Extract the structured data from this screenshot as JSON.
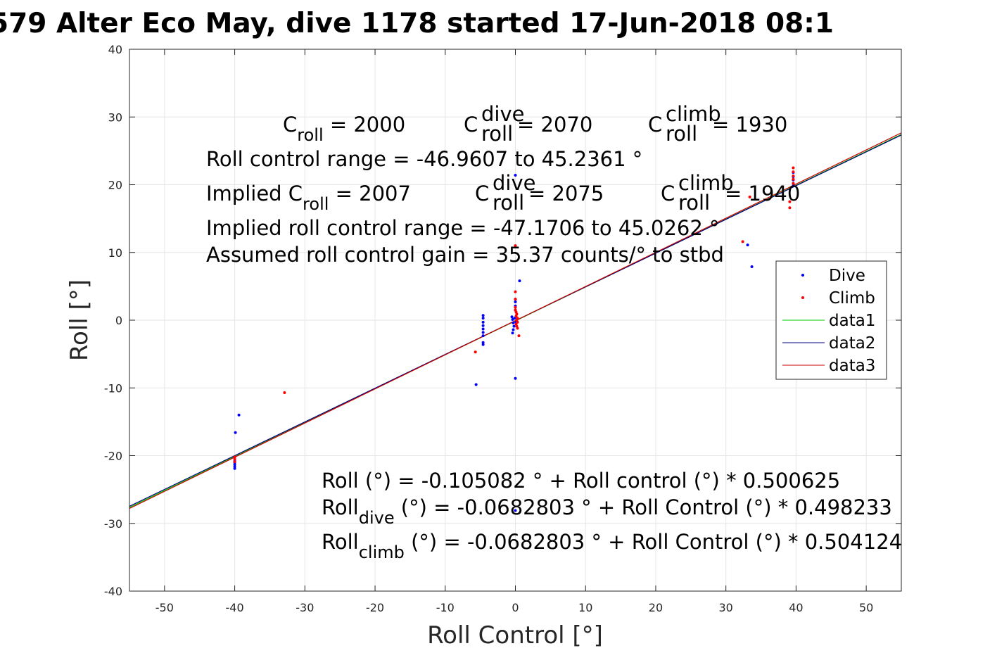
{
  "chart_data": {
    "type": "scatter",
    "title": "579 Alter Eco May, dive 1178 started 17-Jun-2018 08:1",
    "xlabel": "Roll Control [°]",
    "ylabel": "Roll [°]",
    "xlim": [
      -55,
      55
    ],
    "ylim": [
      -40,
      40
    ],
    "xticks": [
      -50,
      -40,
      -30,
      -20,
      -10,
      0,
      10,
      20,
      30,
      40,
      50
    ],
    "yticks": [
      -40,
      -30,
      -20,
      -10,
      0,
      10,
      20,
      30,
      40
    ],
    "grid": true,
    "legend_position": "right",
    "series": [
      {
        "name": "Dive",
        "kind": "points",
        "color": "#0000ff",
        "points": [
          [
            -40,
            -21.9
          ],
          [
            -40,
            -21.6
          ],
          [
            -40,
            -21.3
          ],
          [
            -40,
            -21.0
          ],
          [
            -40,
            -20.8
          ],
          [
            -39.9,
            -16.6
          ],
          [
            -39.4,
            -14.0
          ],
          [
            -4.6,
            0.7
          ],
          [
            -4.6,
            0.3
          ],
          [
            -4.6,
            -0.3
          ],
          [
            -4.6,
            -0.8
          ],
          [
            -4.6,
            -1.3
          ],
          [
            -4.6,
            -1.8
          ],
          [
            -4.6,
            -2.3
          ],
          [
            -4.6,
            -3.3
          ],
          [
            -4.6,
            -3.6
          ],
          [
            -5.6,
            -9.5
          ],
          [
            -0.5,
            0.5
          ],
          [
            -0.4,
            0.1
          ],
          [
            -0.3,
            -0.4
          ],
          [
            -0.2,
            -0.9
          ],
          [
            -0.3,
            -1.4
          ],
          [
            -0.4,
            -1.9
          ],
          [
            0.1,
            -0.3
          ],
          [
            -0.1,
            0.3
          ],
          [
            0,
            1.5
          ],
          [
            0,
            2.1
          ],
          [
            0,
            2.7
          ],
          [
            0,
            3.1
          ],
          [
            0.6,
            5.8
          ],
          [
            0,
            21.4
          ],
          [
            0,
            -8.6
          ],
          [
            0,
            -28.1
          ],
          [
            39.6,
            21.8
          ],
          [
            39.6,
            21.2
          ],
          [
            39.6,
            20.7
          ],
          [
            39.6,
            20.2
          ],
          [
            39.6,
            19.8
          ],
          [
            33.1,
            11.1
          ],
          [
            33.7,
            7.9
          ]
        ]
      },
      {
        "name": "Climb",
        "kind": "points",
        "color": "#ff0000",
        "points": [
          [
            -40,
            -20.2
          ],
          [
            -40,
            -20.5
          ],
          [
            -40,
            -20.9
          ],
          [
            -32.9,
            -10.7
          ],
          [
            -5.7,
            -4.7
          ],
          [
            0,
            11.0
          ],
          [
            0,
            4.2
          ],
          [
            0,
            3.1
          ],
          [
            0,
            1.9
          ],
          [
            0,
            1.5
          ],
          [
            0.1,
            1.2
          ],
          [
            0.2,
            0.9
          ],
          [
            0.1,
            0.6
          ],
          [
            0.3,
            0.3
          ],
          [
            0.2,
            0
          ],
          [
            0.3,
            -0.3
          ],
          [
            0.1,
            -0.6
          ],
          [
            0.2,
            -0.9
          ],
          [
            0.3,
            -1.2
          ],
          [
            0.5,
            -2.3
          ],
          [
            39.6,
            22.5
          ],
          [
            39.6,
            21.9
          ],
          [
            39.6,
            21.3
          ],
          [
            39.6,
            20.8
          ],
          [
            39.6,
            20.2
          ],
          [
            39.1,
            17.5
          ],
          [
            39.1,
            16.6
          ],
          [
            32.4,
            11.6
          ],
          [
            33.4,
            18.2
          ]
        ]
      },
      {
        "name": "data1",
        "kind": "line",
        "color": "#00cc00",
        "intercept": -0.105082,
        "slope": 0.500625
      },
      {
        "name": "data2",
        "kind": "line",
        "color": "#000080",
        "intercept": -0.0682803,
        "slope": 0.498233
      },
      {
        "name": "data3",
        "kind": "line",
        "color": "#cc0000",
        "intercept": -0.0682803,
        "slope": 0.504124
      }
    ],
    "annotations": {
      "c_roll": {
        "main": "C",
        "sub": "roll",
        "val": " = 2000"
      },
      "c_dive": {
        "main": "C",
        "sup": "dive",
        "sub": "roll",
        "val": " = 2070"
      },
      "c_climb": {
        "main": "C",
        "sup": "climb",
        "sub": "roll",
        "val": " = 1930"
      },
      "range": "Roll control range = -46.9607 to 45.2361 °",
      "implied_c_roll": {
        "main": "Implied C",
        "sub": "roll",
        "val": " = 2007"
      },
      "implied_c_dive": {
        "main": "C",
        "sup": "dive",
        "sub": "roll",
        "val": " = 2075"
      },
      "implied_c_climb": {
        "main": "C",
        "sup": "climb",
        "sub": "roll",
        "val": " = 1940"
      },
      "implied_range": "Implied roll control range = -47.1706 to 45.0262 °",
      "gain": "Assumed roll control gain = 35.37 counts/° to stbd",
      "fit_all": "Roll (°) = -0.105082 ° + Roll control (°) * 0.500625",
      "fit_dive": {
        "main": "Roll",
        "sub": "dive",
        "val": " (°) = -0.0682803 ° + Roll Control (°) * 0.498233"
      },
      "fit_climb": {
        "main": "Roll",
        "sub": "climb",
        "val": " (°) = -0.0682803 ° + Roll Control (°) * 0.504124"
      }
    }
  }
}
